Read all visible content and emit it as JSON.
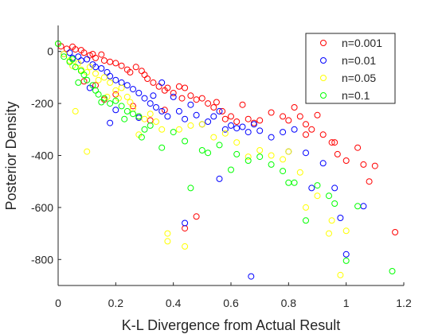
{
  "chart_data": {
    "type": "scatter",
    "title": "",
    "xlabel": "K-L Divergence from Actual Result",
    "ylabel": "Posterior Density",
    "xlim": [
      0,
      1.2
    ],
    "ylim": [
      -900,
      100
    ],
    "xticks": [
      0,
      0.2,
      0.4,
      0.6,
      0.8,
      1,
      1.2
    ],
    "xtick_labels": [
      "0",
      "0.2",
      "0.4",
      "0.6",
      "0.8",
      "1",
      "1.2"
    ],
    "yticks": [
      0,
      -200,
      -400,
      -600,
      -800
    ],
    "ytick_labels": [
      "0",
      "-200",
      "-400",
      "-600",
      "-800"
    ],
    "grid": false,
    "legend_position": "top-right",
    "marker": "open-circle",
    "series": [
      {
        "name": "n=0.001",
        "color": "#ff0000",
        "points": [
          [
            0.01,
            20
          ],
          [
            0.03,
            10
          ],
          [
            0.05,
            18
          ],
          [
            0.06,
            8
          ],
          [
            0.08,
            5
          ],
          [
            0.09,
            -5
          ],
          [
            0.11,
            -15
          ],
          [
            0.12,
            -10
          ],
          [
            0.13,
            -25
          ],
          [
            0.15,
            -12
          ],
          [
            0.16,
            -35
          ],
          [
            0.18,
            -40
          ],
          [
            0.2,
            -45
          ],
          [
            0.22,
            -55
          ],
          [
            0.24,
            -70
          ],
          [
            0.25,
            -80
          ],
          [
            0.27,
            -60
          ],
          [
            0.29,
            -75
          ],
          [
            0.3,
            -90
          ],
          [
            0.31,
            -105
          ],
          [
            0.33,
            -120
          ],
          [
            0.35,
            -135
          ],
          [
            0.37,
            -150
          ],
          [
            0.38,
            -140
          ],
          [
            0.4,
            -160
          ],
          [
            0.42,
            -135
          ],
          [
            0.43,
            -180
          ],
          [
            0.44,
            -140
          ],
          [
            0.46,
            -170
          ],
          [
            0.48,
            -185
          ],
          [
            0.5,
            -180
          ],
          [
            0.52,
            -200
          ],
          [
            0.54,
            -215
          ],
          [
            0.55,
            -195
          ],
          [
            0.57,
            -230
          ],
          [
            0.58,
            -260
          ],
          [
            0.6,
            -250
          ],
          [
            0.62,
            -270
          ],
          [
            0.64,
            -205
          ],
          [
            0.66,
            -260
          ],
          [
            0.68,
            -275
          ],
          [
            0.7,
            -265
          ],
          [
            0.74,
            -235
          ],
          [
            0.78,
            -250
          ],
          [
            0.8,
            -265
          ],
          [
            0.82,
            -215
          ],
          [
            0.84,
            -250
          ],
          [
            0.86,
            -280
          ],
          [
            0.88,
            -300
          ],
          [
            0.9,
            -245
          ],
          [
            0.92,
            -320
          ],
          [
            0.95,
            -350
          ],
          [
            0.97,
            -395
          ],
          [
            1.0,
            -420
          ],
          [
            1.04,
            -370
          ],
          [
            1.06,
            -435
          ],
          [
            1.08,
            -500
          ],
          [
            1.1,
            -440
          ],
          [
            1.17,
            -695
          ],
          [
            0.44,
            -680
          ],
          [
            0.48,
            -635
          ],
          [
            0.09,
            -115
          ],
          [
            0.13,
            -130
          ],
          [
            0.16,
            -185
          ],
          [
            0.2,
            -165
          ],
          [
            0.26,
            -210
          ],
          [
            0.28,
            -250
          ],
          [
            0.32,
            -265
          ],
          [
            0.37,
            -225
          ],
          [
            0.86,
            -320
          ],
          [
            0.96,
            -350
          ]
        ]
      },
      {
        "name": "n=0.01",
        "color": "#0000ff",
        "points": [
          [
            0.02,
            -10
          ],
          [
            0.04,
            -5
          ],
          [
            0.05,
            -25
          ],
          [
            0.07,
            -20
          ],
          [
            0.08,
            -35
          ],
          [
            0.1,
            -30
          ],
          [
            0.12,
            -50
          ],
          [
            0.13,
            -60
          ],
          [
            0.15,
            -65
          ],
          [
            0.17,
            -80
          ],
          [
            0.18,
            -95
          ],
          [
            0.2,
            -110
          ],
          [
            0.22,
            -120
          ],
          [
            0.24,
            -130
          ],
          [
            0.26,
            -145
          ],
          [
            0.28,
            -160
          ],
          [
            0.3,
            -180
          ],
          [
            0.32,
            -200
          ],
          [
            0.34,
            -215
          ],
          [
            0.36,
            -230
          ],
          [
            0.38,
            -250
          ],
          [
            0.4,
            -175
          ],
          [
            0.42,
            -230
          ],
          [
            0.44,
            -260
          ],
          [
            0.46,
            -205
          ],
          [
            0.48,
            -245
          ],
          [
            0.5,
            -280
          ],
          [
            0.52,
            -270
          ],
          [
            0.54,
            -250
          ],
          [
            0.56,
            -230
          ],
          [
            0.58,
            -300
          ],
          [
            0.6,
            -285
          ],
          [
            0.62,
            -295
          ],
          [
            0.64,
            -290
          ],
          [
            0.66,
            -310
          ],
          [
            0.68,
            -280
          ],
          [
            0.7,
            -305
          ],
          [
            0.74,
            -330
          ],
          [
            0.78,
            -310
          ],
          [
            0.8,
            -385
          ],
          [
            0.82,
            -300
          ],
          [
            0.86,
            -390
          ],
          [
            0.88,
            -525
          ],
          [
            0.92,
            -430
          ],
          [
            0.96,
            -525
          ],
          [
            0.98,
            -640
          ],
          [
            1.0,
            -780
          ],
          [
            1.06,
            -595
          ],
          [
            0.44,
            -660
          ],
          [
            0.56,
            -490
          ],
          [
            0.67,
            -865
          ],
          [
            0.28,
            -255
          ],
          [
            0.18,
            -275
          ],
          [
            0.11,
            -140
          ],
          [
            0.2,
            -225
          ],
          [
            0.33,
            -170
          ],
          [
            0.36,
            -120
          ]
        ]
      },
      {
        "name": "n=0.05",
        "color": "#ffff00",
        "points": [
          [
            0.0,
            30
          ],
          [
            0.02,
            -10
          ],
          [
            0.04,
            -35
          ],
          [
            0.05,
            -55
          ],
          [
            0.07,
            -45
          ],
          [
            0.08,
            -70
          ],
          [
            0.1,
            -80
          ],
          [
            0.11,
            -60
          ],
          [
            0.13,
            -85
          ],
          [
            0.14,
            -110
          ],
          [
            0.16,
            -100
          ],
          [
            0.18,
            -120
          ],
          [
            0.2,
            -150
          ],
          [
            0.22,
            -140
          ],
          [
            0.24,
            -175
          ],
          [
            0.26,
            -220
          ],
          [
            0.28,
            -320
          ],
          [
            0.3,
            -260
          ],
          [
            0.32,
            -240
          ],
          [
            0.34,
            -270
          ],
          [
            0.36,
            -300
          ],
          [
            0.38,
            -700
          ],
          [
            0.38,
            -730
          ],
          [
            0.42,
            -300
          ],
          [
            0.44,
            -750
          ],
          [
            0.46,
            -285
          ],
          [
            0.5,
            -280
          ],
          [
            0.54,
            -330
          ],
          [
            0.58,
            -315
          ],
          [
            0.62,
            -350
          ],
          [
            0.66,
            -405
          ],
          [
            0.7,
            -380
          ],
          [
            0.74,
            -400
          ],
          [
            0.78,
            -415
          ],
          [
            0.8,
            -385
          ],
          [
            0.84,
            -465
          ],
          [
            0.86,
            -600
          ],
          [
            0.9,
            -555
          ],
          [
            0.94,
            -700
          ],
          [
            0.95,
            -650
          ],
          [
            0.98,
            -860
          ],
          [
            1.0,
            -690
          ],
          [
            0.06,
            -230
          ],
          [
            0.1,
            -385
          ],
          [
            0.17,
            -175
          ],
          [
            0.21,
            -180
          ],
          [
            0.25,
            -195
          ]
        ]
      },
      {
        "name": "n=0.1",
        "color": "#00ff00",
        "points": [
          [
            0.0,
            30
          ],
          [
            0.02,
            -20
          ],
          [
            0.04,
            -40
          ],
          [
            0.05,
            -30
          ],
          [
            0.06,
            -60
          ],
          [
            0.08,
            -75
          ],
          [
            0.09,
            -90
          ],
          [
            0.1,
            -110
          ],
          [
            0.12,
            -130
          ],
          [
            0.13,
            -150
          ],
          [
            0.14,
            -165
          ],
          [
            0.16,
            -180
          ],
          [
            0.18,
            -200
          ],
          [
            0.2,
            -190
          ],
          [
            0.22,
            -210
          ],
          [
            0.24,
            -230
          ],
          [
            0.26,
            -240
          ],
          [
            0.28,
            -250
          ],
          [
            0.3,
            -300
          ],
          [
            0.32,
            -285
          ],
          [
            0.36,
            -370
          ],
          [
            0.4,
            -310
          ],
          [
            0.44,
            -345
          ],
          [
            0.46,
            -525
          ],
          [
            0.5,
            -380
          ],
          [
            0.52,
            -390
          ],
          [
            0.56,
            -360
          ],
          [
            0.6,
            -455
          ],
          [
            0.62,
            -395
          ],
          [
            0.66,
            -420
          ],
          [
            0.7,
            -405
          ],
          [
            0.74,
            -435
          ],
          [
            0.78,
            -460
          ],
          [
            0.8,
            -505
          ],
          [
            0.82,
            -505
          ],
          [
            0.86,
            -650
          ],
          [
            0.9,
            -515
          ],
          [
            0.94,
            -555
          ],
          [
            0.96,
            -585
          ],
          [
            1.0,
            -805
          ],
          [
            1.04,
            -595
          ],
          [
            1.16,
            -845
          ],
          [
            0.07,
            -120
          ],
          [
            0.15,
            -195
          ],
          [
            0.23,
            -260
          ],
          [
            0.29,
            -330
          ]
        ]
      }
    ]
  }
}
